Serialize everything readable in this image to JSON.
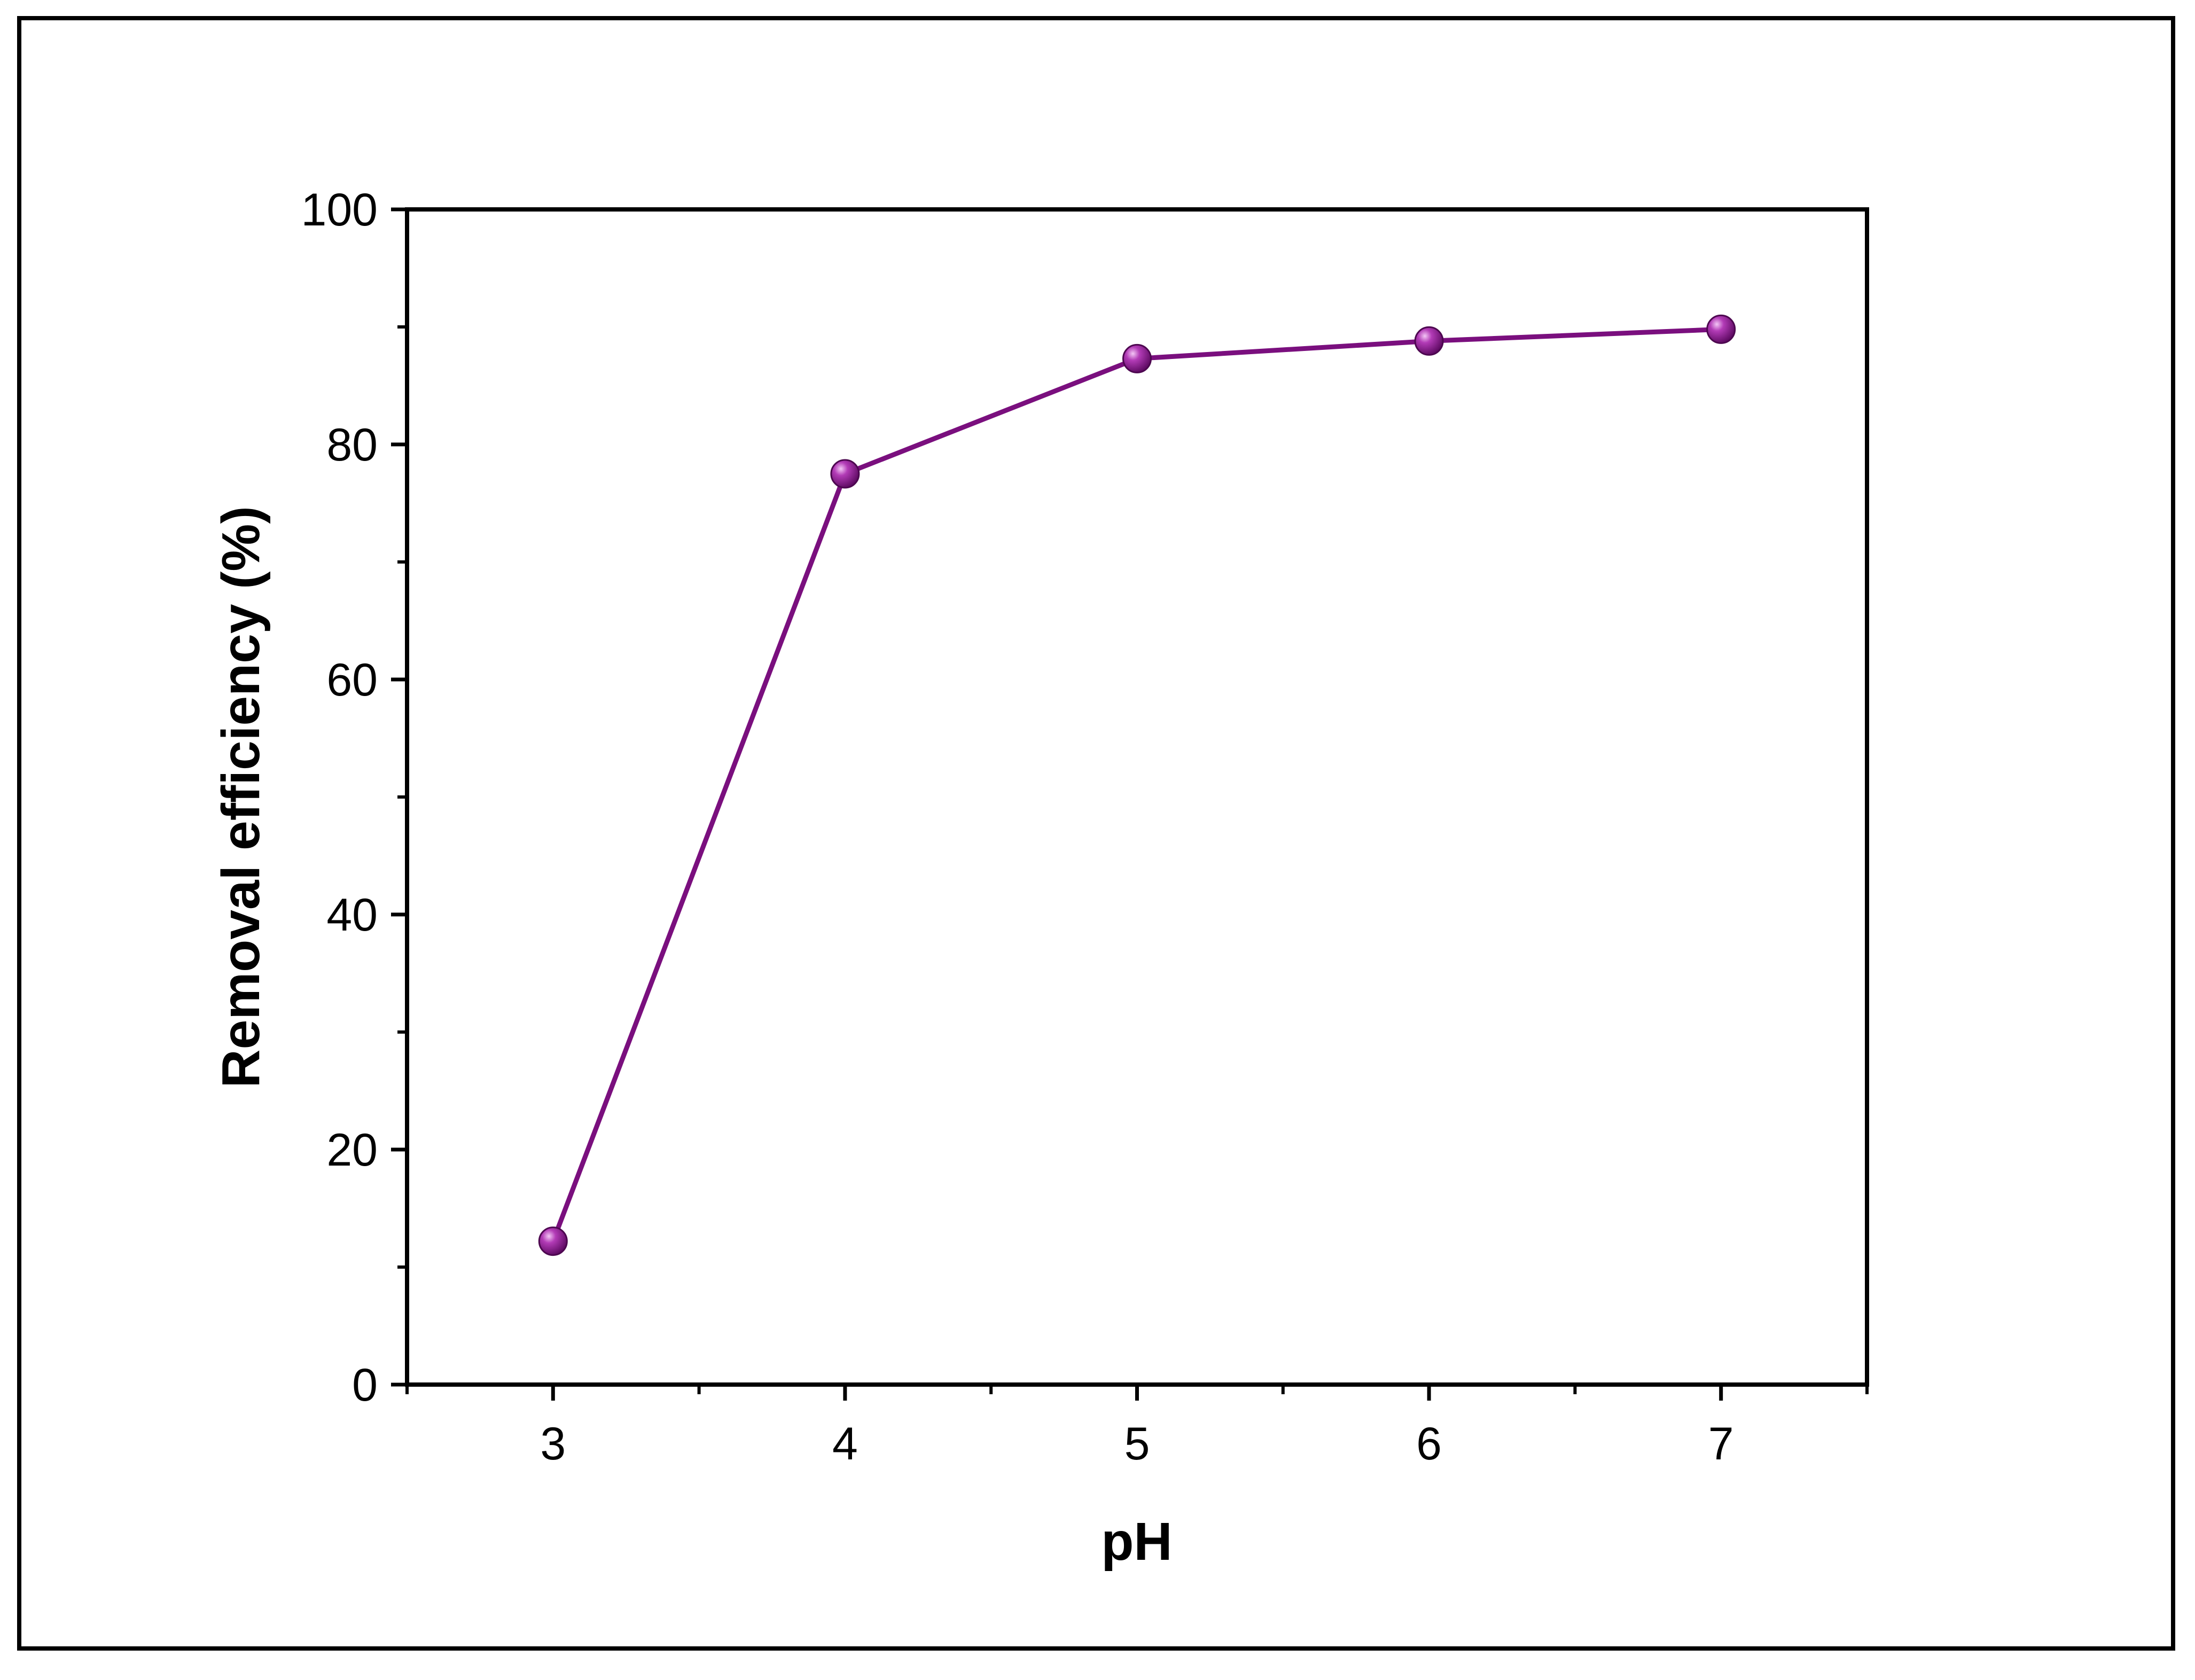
{
  "chart_data": {
    "type": "line",
    "title": "",
    "xlabel": "pH",
    "ylabel": "Removal efficiency (%)",
    "xlim": [
      2.5,
      7.5
    ],
    "ylim": [
      0,
      100
    ],
    "x_ticks": [
      3,
      4,
      5,
      6,
      7
    ],
    "y_ticks": [
      0,
      20,
      40,
      60,
      80,
      100
    ],
    "grid": false,
    "legend": "none",
    "series": [
      {
        "x": [
          3,
          4,
          5,
          6,
          7
        ],
        "y": [
          12.2,
          77.5,
          87.3,
          88.8,
          89.8
        ],
        "color": "#7a0f7e",
        "marker": "circle"
      }
    ]
  }
}
